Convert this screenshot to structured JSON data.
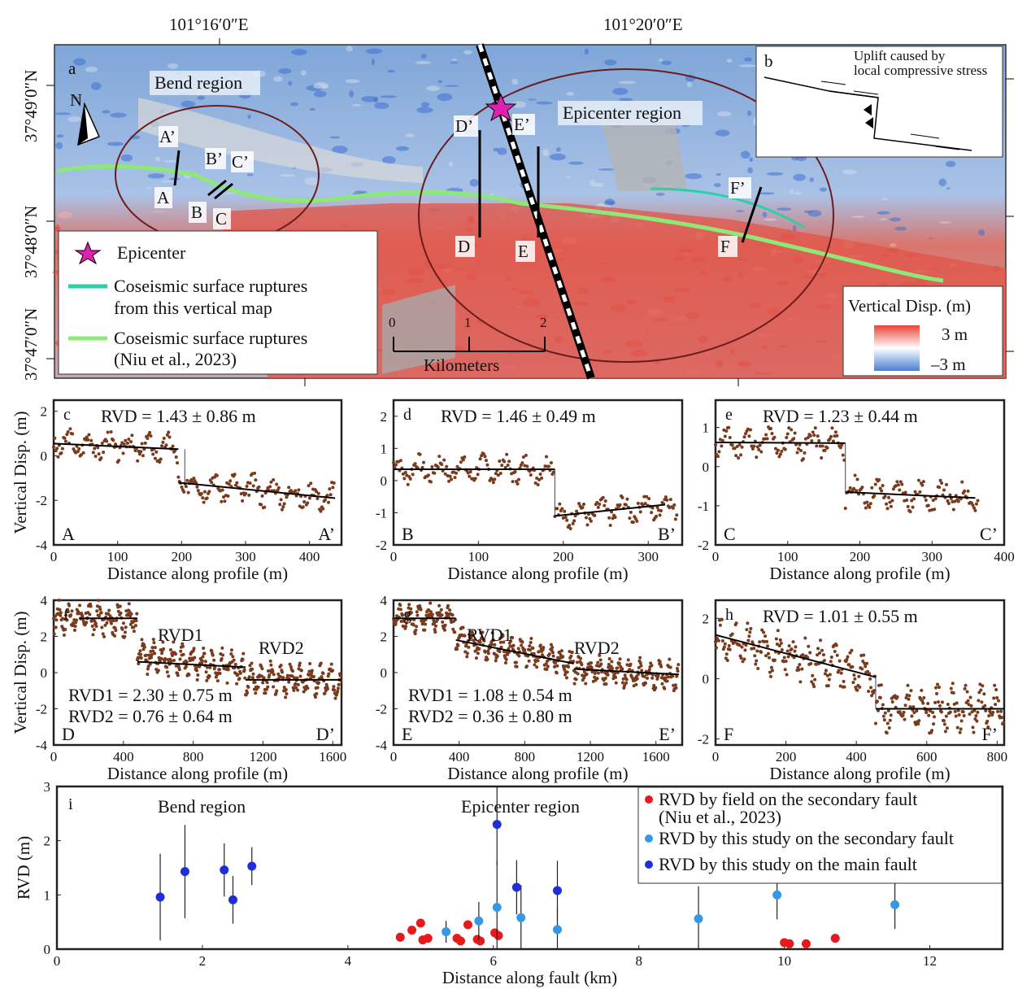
{
  "figure": {
    "top_coords": [
      "101°16′0″E",
      "101°20′0″E"
    ],
    "left_coords": [
      "37°49′0″N",
      "37°48′0″N",
      "37°47′0″N"
    ]
  },
  "map": {
    "letter": "a",
    "north": "N",
    "regions": [
      "Bend region",
      "Epicenter region"
    ],
    "profile_labels": {
      "A": "A",
      "A2": "A’",
      "B": "B",
      "B2": "B’",
      "C": "C",
      "C2": "C’",
      "D": "D",
      "D2": "D’",
      "E": "E",
      "E2": "E’",
      "F": "F",
      "F2": "F’"
    },
    "scale": {
      "ticks": [
        "0",
        "1",
        "2"
      ],
      "unit": "Kilometers"
    },
    "legend": {
      "epicenter": "Epicenter",
      "rupture_this": "Coseismic surface ruptures",
      "rupture_this_2": "from this vertical map",
      "rupture_niu": "Coseismic surface ruptures",
      "rupture_niu_2": "(Niu et al., 2023)"
    },
    "colorbar": {
      "title": "Vertical Disp. (m)",
      "max": "3 m",
      "min": "–3 m",
      "colors": [
        "#e8443a",
        "#ffffff",
        "#4a7fd6"
      ]
    }
  },
  "inset_b": {
    "letter": "b",
    "text1": "Uplift caused by",
    "text2": "local compressive stress"
  },
  "chart_data": [
    {
      "id": "c",
      "type": "scatter",
      "xlim": [
        0,
        450
      ],
      "ylim": [
        -4,
        2.5
      ],
      "xticks": [
        0,
        100,
        200,
        300,
        400
      ],
      "yticks": [
        -4,
        -2,
        0,
        2
      ],
      "xlabel": "Distance along profile (m)",
      "ylabel": "Vertical Disp. (m)",
      "annotation": "RVD  =  1.43 ± 0.86 m",
      "start": "A",
      "end": "A’",
      "fit": [
        [
          [
            0,
            0.55
          ],
          [
            195,
            0.3
          ]
        ],
        [
          [
            195,
            -1.2
          ],
          [
            440,
            -1.9
          ]
        ]
      ],
      "arrow": [
        205,
        0.3,
        -1.2
      ],
      "noise": {
        "amp": 0.7,
        "seed": 3,
        "n": 260,
        "breaks": [
          [
            0,
            195,
            0.55,
            0.3
          ],
          [
            195,
            440,
            -1.2,
            -1.9
          ]
        ]
      }
    },
    {
      "id": "d",
      "type": "scatter",
      "xlim": [
        0,
        340
      ],
      "ylim": [
        -2,
        2.5
      ],
      "xticks": [
        0,
        100,
        200,
        300
      ],
      "yticks": [
        -2,
        -1,
        0,
        1,
        2
      ],
      "xlabel": "Distance along profile (m)",
      "ylabel": "",
      "annotation": "RVD  =  1.46 ± 0.49 m",
      "start": "B",
      "end": "B’",
      "fit": [
        [
          [
            0,
            0.35
          ],
          [
            190,
            0.35
          ]
        ],
        [
          [
            190,
            -1.1
          ],
          [
            320,
            -0.75
          ]
        ]
      ],
      "arrow": [
        190,
        0.35,
        -1.1
      ],
      "noise": {
        "amp": 0.45,
        "seed": 7,
        "n": 240,
        "breaks": [
          [
            0,
            190,
            0.35,
            0.35
          ],
          [
            190,
            335,
            -1.1,
            -0.75
          ]
        ]
      }
    },
    {
      "id": "e",
      "type": "scatter",
      "xlim": [
        0,
        400
      ],
      "ylim": [
        -2,
        1.7
      ],
      "xticks": [
        0,
        100,
        200,
        300,
        400
      ],
      "yticks": [
        -2,
        -1,
        0,
        1
      ],
      "xlabel": "Distance along profile (m)",
      "ylabel": "",
      "annotation": "RVD  =  1.23 ± 0.44 m",
      "start": "C",
      "end": "C’",
      "fit": [
        [
          [
            0,
            0.62
          ],
          [
            180,
            0.6
          ]
        ],
        [
          [
            180,
            -0.65
          ],
          [
            360,
            -0.8
          ]
        ]
      ],
      "arrow": [
        180,
        0.6,
        -0.65
      ],
      "noise": {
        "amp": 0.4,
        "seed": 11,
        "n": 240,
        "breaks": [
          [
            0,
            180,
            0.62,
            0.6
          ],
          [
            180,
            365,
            -0.65,
            -0.8
          ]
        ]
      }
    },
    {
      "id": "f",
      "type": "scatter",
      "xlim": [
        0,
        1650
      ],
      "ylim": [
        -4,
        4
      ],
      "xticks": [
        0,
        400,
        800,
        1200,
        1600
      ],
      "yticks": [
        -4,
        -2,
        0,
        2,
        4
      ],
      "xlabel": "Distance along profile (m)",
      "ylabel": "Vertical Disp. (m)",
      "annotation": "",
      "start": "D",
      "end": "D’",
      "rvd_labels": [
        "RVD1",
        "RVD2"
      ],
      "stats": [
        "RVD1 =  2.30  ±  0.75  m",
        "RVD2 =  0.76  ±  0.64 m"
      ],
      "fit": [
        [
          [
            150,
            3
          ],
          [
            480,
            3
          ]
        ],
        [
          [
            480,
            0.6
          ],
          [
            1100,
            0.3
          ]
        ],
        [
          [
            1100,
            -0.4
          ],
          [
            1650,
            -0.4
          ]
        ]
      ],
      "noise": {
        "amp": 0.9,
        "seed": 17,
        "n": 520,
        "breaks": [
          [
            0,
            480,
            3.1,
            2.9
          ],
          [
            480,
            1100,
            1.0,
            0.2
          ],
          [
            1100,
            1650,
            -0.3,
            -0.5
          ]
        ]
      }
    },
    {
      "id": "g",
      "type": "scatter",
      "xlim": [
        0,
        1760
      ],
      "ylim": [
        -4,
        4
      ],
      "xticks": [
        0,
        400,
        800,
        1200,
        1600
      ],
      "yticks": [
        -4,
        -2,
        0,
        2,
        4
      ],
      "xlabel": "Distance along profile (m)",
      "ylabel": "",
      "annotation": "",
      "start": "E",
      "end": "E’",
      "rvd_labels": [
        "RVD1",
        "RVD2"
      ],
      "stats": [
        "RVD1 =  1.08  ±  0.54  m",
        "RVD2 =  0.36  ±  0.80  m"
      ],
      "fit": [
        [
          [
            0,
            3
          ],
          [
            380,
            3
          ]
        ],
        [
          [
            380,
            1.8
          ],
          [
            1100,
            0.5
          ]
        ],
        [
          [
            1100,
            0.2
          ],
          [
            1740,
            -0.1
          ]
        ]
      ],
      "noise": {
        "amp": 0.8,
        "seed": 23,
        "n": 520,
        "breaks": [
          [
            0,
            380,
            3.0,
            3.0
          ],
          [
            380,
            1100,
            1.9,
            0.5
          ],
          [
            1100,
            1740,
            0.2,
            -0.2
          ]
        ]
      }
    },
    {
      "id": "h",
      "type": "scatter",
      "xlim": [
        0,
        820
      ],
      "ylim": [
        -2.2,
        2.6
      ],
      "xticks": [
        0,
        200,
        400,
        600,
        800
      ],
      "yticks": [
        -2,
        0,
        2
      ],
      "xlabel": "Distance along profile (m)",
      "ylabel": "",
      "annotation": "RVD  =  1.01  ±  0.55 m",
      "start": "F",
      "end": "F’",
      "fit": [
        [
          [
            0,
            1.45
          ],
          [
            455,
            0.05
          ]
        ],
        [
          [
            455,
            -1.0
          ],
          [
            820,
            -1.0
          ]
        ]
      ],
      "arrow": [
        455,
        0.05,
        -1.0
      ],
      "noise": {
        "amp": 0.75,
        "seed": 31,
        "n": 360,
        "breaks": [
          [
            0,
            455,
            1.3,
            0.1
          ],
          [
            455,
            820,
            -1.0,
            -1.0
          ]
        ]
      }
    },
    {
      "id": "i",
      "type": "scatter",
      "xlim": [
        0,
        13
      ],
      "ylim": [
        0,
        3
      ],
      "xticks": [
        0,
        2,
        4,
        6,
        8,
        10,
        12
      ],
      "yticks": [
        0,
        1,
        2,
        3
      ],
      "xlabel": "Distance along fault (km)",
      "ylabel": "RVD  (m)",
      "region_labels": [
        "Bend region",
        "Epicenter region"
      ],
      "series": [
        {
          "name": "RVD by field on the secondary fault",
          "name2": "(Niu et al., 2023)",
          "color": "#e41a1c",
          "points": [
            [
              4.72,
              0.22
            ],
            [
              4.88,
              0.35
            ],
            [
              5.0,
              0.48
            ],
            [
              5.03,
              0.17
            ],
            [
              5.1,
              0.2
            ],
            [
              5.5,
              0.2
            ],
            [
              5.55,
              0.15
            ],
            [
              5.65,
              0.45
            ],
            [
              5.78,
              0.18
            ],
            [
              5.82,
              0.15
            ],
            [
              6.02,
              0.3
            ],
            [
              6.07,
              0.25
            ],
            [
              10.0,
              0.12
            ],
            [
              10.07,
              0.1
            ],
            [
              10.3,
              0.1
            ],
            [
              10.7,
              0.2
            ]
          ]
        },
        {
          "name": "RVD by this study on the secondary fault",
          "color": "#3399e6",
          "points": [
            [
              5.35,
              0.32,
              0.2
            ],
            [
              5.8,
              0.52,
              0.35
            ],
            [
              6.05,
              0.77,
              0.85
            ],
            [
              6.38,
              0.58,
              0.6
            ],
            [
              6.88,
              0.36,
              0.4
            ],
            [
              8.82,
              0.56,
              0.6
            ],
            [
              9.9,
              1.0,
              0.45
            ],
            [
              11.52,
              0.82,
              0.45
            ]
          ]
        },
        {
          "name": "RVD by this study on the main fault",
          "color": "#1f2fd8",
          "points": [
            [
              1.42,
              0.96,
              0.8
            ],
            [
              1.76,
              1.43,
              0.86
            ],
            [
              2.3,
              1.46,
              0.49
            ],
            [
              2.42,
              0.91,
              0.44
            ],
            [
              2.68,
              1.53,
              0.35
            ],
            [
              6.05,
              2.3,
              0.75
            ],
            [
              6.32,
              1.14,
              0.5
            ],
            [
              6.88,
              1.08,
              0.55
            ]
          ]
        }
      ]
    }
  ]
}
